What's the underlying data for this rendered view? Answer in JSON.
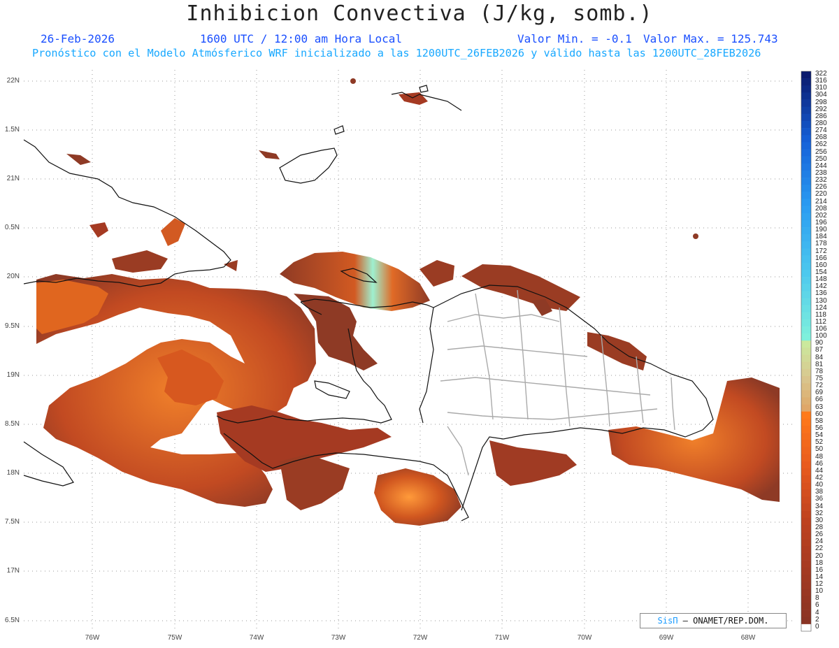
{
  "title": "Inhibicion Convectiva (J/kg, somb.)",
  "header": {
    "date": "26-Feb-2026",
    "time": "1600 UTC / 12:00 am Hora Local",
    "min_label": "Valor Min. = -0.1",
    "max_label": "Valor Max. = 125.743",
    "subtitle": "Pronóstico con el Modelo Atmósferico WRF inicializado a las 1200UTC_26FEB2026 y válido hasta las  1200UTC_28FEB2026"
  },
  "axes": {
    "lat_labels": [
      "22N",
      "1.5N",
      "21N",
      "0.5N",
      "20N",
      "9.5N",
      "19N",
      "8.5N",
      "18N",
      "7.5N",
      "17N",
      "6.5N"
    ],
    "lon_labels": [
      "76W",
      "75W",
      "74W",
      "73W",
      "72W",
      "71W",
      "70W",
      "69W",
      "68W"
    ]
  },
  "colorbar": {
    "labels": [
      "322",
      "316",
      "310",
      "304",
      "298",
      "292",
      "286",
      "280",
      "274",
      "268",
      "262",
      "256",
      "250",
      "244",
      "238",
      "232",
      "226",
      "220",
      "214",
      "208",
      "202",
      "196",
      "190",
      "184",
      "178",
      "172",
      "166",
      "160",
      "154",
      "148",
      "142",
      "136",
      "130",
      "124",
      "118",
      "112",
      "106",
      "100",
      "90",
      "87",
      "84",
      "81",
      "78",
      "75",
      "72",
      "69",
      "66",
      "63",
      "60",
      "58",
      "56",
      "54",
      "52",
      "50",
      "48",
      "46",
      "44",
      "42",
      "40",
      "38",
      "36",
      "34",
      "32",
      "30",
      "28",
      "26",
      "24",
      "22",
      "20",
      "18",
      "16",
      "14",
      "12",
      "10",
      "8",
      "6",
      "4",
      "2",
      "0"
    ],
    "colors_high": [
      "#0a1a6e",
      "#1560d8",
      "#2a9cf2",
      "#4cc8ee",
      "#7ef0dc"
    ],
    "colors_mid": [
      "#c8f0a0",
      "#d8c890",
      "#e0a060"
    ],
    "colors_low": [
      "#ff7a1a",
      "#e85a1e",
      "#c0431f",
      "#a53a22",
      "#8a3424"
    ],
    "zero_color": "#ffffff"
  },
  "credit": {
    "brand": "SisПּ",
    "org": "– ONAMET/REP.DOM."
  },
  "colors": {
    "field_low": "#8e3a25",
    "field_mid": "#c8501f",
    "field_high": "#f07a26",
    "field_peak": "#8ef0d8"
  }
}
